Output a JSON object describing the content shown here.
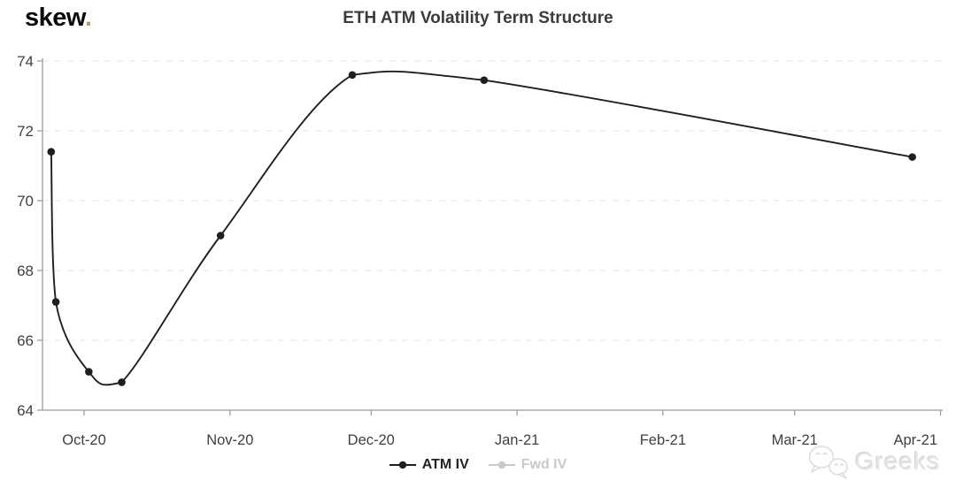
{
  "logo": {
    "text": "skew",
    "dot": ".",
    "dot_color": "#c39a4e",
    "text_color": "#0b0b0b"
  },
  "header": {
    "title": "ETH ATM Volatility Term Structure"
  },
  "legend": {
    "items": [
      {
        "id": "atm-iv",
        "label": "ATM IV",
        "color": "#1f1f1f",
        "active": true
      },
      {
        "id": "fwd-iv",
        "label": "Fwd IV",
        "color": "#c9c9c9",
        "active": false
      }
    ]
  },
  "watermark": {
    "label": "Greeks",
    "icon": "wechat-icon"
  },
  "chart_data": {
    "type": "line",
    "title": "ETH ATM Volatility Term Structure",
    "line_shape": "spline",
    "grid": "horizontal-dashed",
    "legend_position": "bottom-center",
    "xlabel": "",
    "ylabel": "",
    "ylim": [
      64,
      74
    ],
    "y_ticks": [
      64,
      66,
      68,
      70,
      72,
      74
    ],
    "x_ticks": [
      {
        "label": "Oct-20",
        "date": "2020-10-01"
      },
      {
        "label": "Nov-20",
        "date": "2020-11-01"
      },
      {
        "label": "Dec-20",
        "date": "2020-12-01"
      },
      {
        "label": "Jan-21",
        "date": "2021-01-01"
      },
      {
        "label": "Feb-21",
        "date": "2021-02-01"
      },
      {
        "label": "Mar-21",
        "date": "2021-03-01"
      },
      {
        "label": "Apr-21",
        "date": "2021-04-01"
      }
    ],
    "series": [
      {
        "name": "ATM IV",
        "color": "#1f1f1f",
        "marker": "circle",
        "x": [
          "2020-09-24",
          "2020-09-25",
          "2020-10-02",
          "2020-10-09",
          "2020-10-30",
          "2020-11-27",
          "2020-12-25",
          "2021-03-26"
        ],
        "values": [
          71.4,
          67.1,
          65.1,
          64.8,
          69.0,
          73.6,
          73.45,
          71.25
        ]
      },
      {
        "name": "Fwd IV",
        "color": "#c9c9c9",
        "hidden": true,
        "x": [],
        "values": []
      }
    ],
    "colors": {
      "line": "#1f1f1f",
      "grid": "#e4e4e4",
      "axis": "#9a9a9a",
      "tick_label": "#3f3f3f"
    }
  }
}
